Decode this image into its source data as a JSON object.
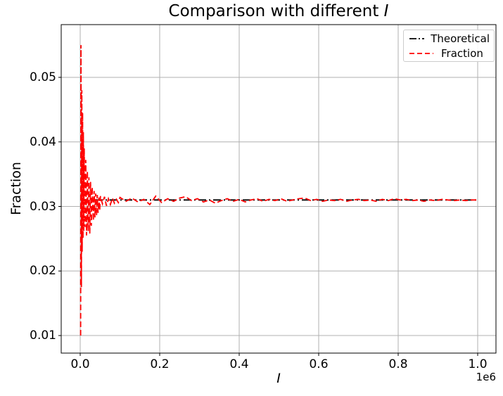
{
  "chart_data": {
    "type": "line",
    "title": "Comparison with different I",
    "title_prefix": "Comparison with different ",
    "title_math": "I",
    "xlabel": "I",
    "ylabel": "Fraction",
    "x_scale_offset_label": "1e6",
    "xlim": [
      -47800,
      1046000
    ],
    "ylim": [
      0.00728,
      0.05817
    ],
    "x_ticks": [
      0,
      200000,
      400000,
      600000,
      800000,
      1000000
    ],
    "x_tick_labels": [
      "0.0",
      "0.2",
      "0.4",
      "0.6",
      "0.8",
      "1.0"
    ],
    "y_ticks": [
      0.01,
      0.02,
      0.03,
      0.04,
      0.05
    ],
    "y_tick_labels": [
      "0.01",
      "0.02",
      "0.03",
      "0.04",
      "0.05"
    ],
    "grid": true,
    "grid_color": "#b0b0b0",
    "legend_position": "upper right",
    "series": [
      {
        "name": "Theoretical",
        "color": "#000000",
        "linestyle": "dashdot",
        "x": [
          0,
          1000000
        ],
        "y": [
          0.031,
          0.031
        ]
      },
      {
        "name": "Fraction",
        "color": "#ff0000",
        "linestyle": "dashed",
        "x": [
          1000,
          2000,
          3000,
          4000,
          5000,
          6000,
          7000,
          8000,
          9000,
          10000,
          12000,
          14000,
          16000,
          18000,
          20000,
          22000,
          24000,
          26000,
          28000,
          30000,
          33000,
          35000,
          37000,
          39000,
          41000,
          43000,
          45000,
          47000,
          49000,
          51000,
          56000,
          61000,
          66000,
          71000,
          76000,
          81000,
          86000,
          91000,
          96000,
          100000,
          115000,
          130000,
          145000,
          160000,
          175000,
          190000,
          205000,
          220000,
          235000,
          250000,
          265000,
          280000,
          295000,
          310000,
          325000,
          340000,
          355000,
          370000,
          385000,
          400000,
          415000,
          430000,
          445000,
          460000,
          475000,
          490000,
          505000,
          520000,
          535000,
          550000,
          565000,
          580000,
          595000,
          610000,
          625000,
          640000,
          655000,
          670000,
          685000,
          700000,
          715000,
          730000,
          745000,
          760000,
          775000,
          790000,
          805000,
          820000,
          835000,
          850000,
          865000,
          880000,
          895000,
          910000,
          925000,
          940000,
          955000,
          970000,
          985000,
          1000000
        ],
        "y": [
          0.01,
          0.055,
          0.0175,
          0.048,
          0.023,
          0.0445,
          0.025,
          0.0415,
          0.0262,
          0.039,
          0.0268,
          0.0372,
          0.0255,
          0.0355,
          0.0262,
          0.0345,
          0.0258,
          0.0338,
          0.027,
          0.033,
          0.0278,
          0.0324,
          0.0283,
          0.032,
          0.0286,
          0.0318,
          0.029,
          0.0314,
          0.0294,
          0.0316,
          0.0304,
          0.0315,
          0.0301,
          0.0312,
          0.0303,
          0.0313,
          0.0305,
          0.0311,
          0.0306,
          0.0314,
          0.0308,
          0.0313,
          0.0307,
          0.0311,
          0.0303,
          0.0316,
          0.0306,
          0.0312,
          0.0308,
          0.0313,
          0.0315,
          0.0309,
          0.0312,
          0.0307,
          0.031,
          0.0305,
          0.0309,
          0.0312,
          0.0308,
          0.0311,
          0.0307,
          0.031,
          0.0312,
          0.0308,
          0.0311,
          0.0309,
          0.0312,
          0.0308,
          0.031,
          0.0312,
          0.0313,
          0.0309,
          0.0311,
          0.0308,
          0.031,
          0.0309,
          0.0311,
          0.0308,
          0.031,
          0.0311,
          0.0309,
          0.031,
          0.0308,
          0.0311,
          0.0309,
          0.0312,
          0.031,
          0.0311,
          0.0309,
          0.031,
          0.0308,
          0.031,
          0.0309,
          0.0311,
          0.031,
          0.0309,
          0.031,
          0.0309,
          0.031,
          0.031
        ]
      }
    ]
  }
}
